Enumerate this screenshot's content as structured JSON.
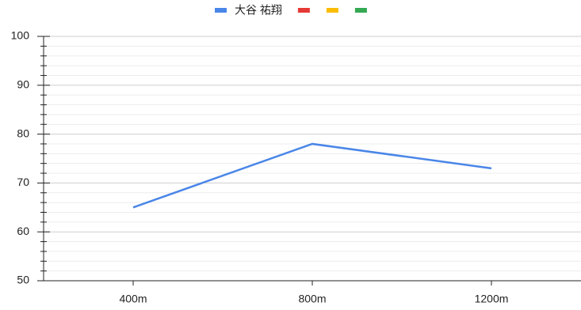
{
  "chart_data": {
    "type": "line",
    "categories": [
      "400m",
      "800m",
      "1200m"
    ],
    "series": [
      {
        "name": "大谷 祐翔",
        "color": "#4a86e8",
        "values": [
          65,
          78,
          73
        ]
      },
      {
        "color": "#e53935",
        "values": [
          null,
          null,
          null
        ]
      },
      {
        "color": "#fbbc04",
        "values": [
          null,
          null,
          null
        ]
      },
      {
        "color": "#34a853",
        "values": [
          null,
          null,
          null
        ]
      }
    ],
    "ylim": [
      50,
      100
    ],
    "yticks": [
      50,
      60,
      70,
      80,
      90,
      100
    ],
    "minor_yticks": [
      52,
      54,
      56,
      58,
      62,
      64,
      66,
      68,
      72,
      74,
      76,
      78,
      82,
      84,
      86,
      88,
      92,
      94,
      96,
      98
    ],
    "grid": true,
    "legend": "top"
  }
}
